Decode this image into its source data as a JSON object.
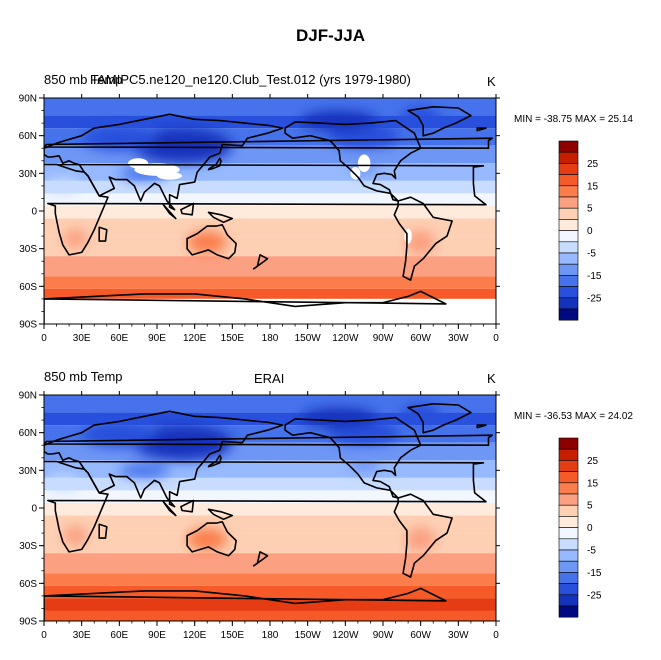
{
  "chart_data": {
    "type": "heatmap",
    "title": "DJF-JJA",
    "panels": [
      {
        "left_label": "850 mb Temp",
        "center_label": "FAMIPC5.ne120_ne120.Club_Test.012 (yrs 1979-1980)",
        "units": "K",
        "min_max": "MIN = -38.75 MAX =  25.14",
        "min": -38.75,
        "max": 25.14
      },
      {
        "left_label": "850 mb Temp",
        "center_label": "ERAI",
        "units": "K",
        "min_max": "MIN = -36.53 MAX =  24.02",
        "min": -36.53,
        "max": 24.02
      }
    ],
    "x_ticks": [
      "0",
      "30E",
      "60E",
      "90E",
      "120E",
      "150E",
      "180",
      "150W",
      "120W",
      "90W",
      "60W",
      "30W",
      "0"
    ],
    "y_ticks": [
      "90N",
      "60N",
      "30N",
      "0",
      "30S",
      "60S",
      "90S"
    ],
    "colorbar_labels": [
      "25",
      "15",
      "5",
      "0",
      "-5",
      "-15",
      "-25"
    ],
    "colorbar_levels": [
      30,
      25,
      20,
      15,
      10,
      5,
      2.5,
      0,
      -2.5,
      -5,
      -10,
      -15,
      -20,
      -25,
      -30
    ],
    "colorbar_colors": [
      "#8c0000",
      "#c81e00",
      "#e63c14",
      "#f55a28",
      "#fa7d4b",
      "#fca082",
      "#fdd0b4",
      "#ffeadc",
      "#f2f7ff",
      "#c8dcff",
      "#96b9ff",
      "#6e96f5",
      "#4673eb",
      "#2850dc",
      "#1432bc",
      "#000a80"
    ]
  }
}
